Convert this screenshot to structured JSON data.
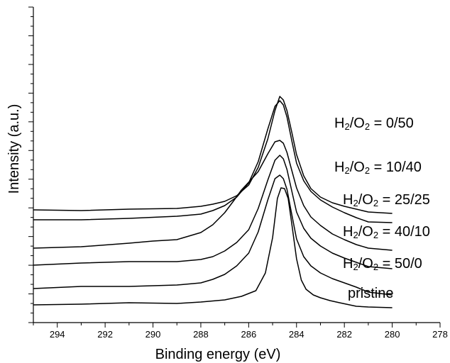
{
  "chart_data": {
    "type": "line",
    "title": "",
    "xlabel": "Binding energy (eV)",
    "ylabel": "Intensity (a.u.)",
    "xlim": [
      295,
      278
    ],
    "x_reversed": true,
    "x_ticks": [
      294,
      292,
      290,
      288,
      286,
      284,
      282,
      280,
      278
    ],
    "y_tick_labels": false,
    "grid": false,
    "legend": "inline labels at right end of each curve",
    "series": [
      {
        "name": "pristine",
        "label": {
          "base": "pristine"
        },
        "x": [
          295,
          293,
          291,
          289,
          288,
          287,
          286.3,
          285.7,
          285.3,
          285.0,
          284.8,
          284.65,
          284.5,
          284.35,
          284.2,
          284.0,
          283.8,
          283.6,
          283.3,
          283.0,
          282.6,
          282.2,
          281.5,
          281.0,
          280.0
        ],
        "y": [
          0.0,
          0.01,
          0.03,
          0.02,
          0.04,
          0.07,
          0.12,
          0.2,
          0.45,
          0.95,
          1.5,
          1.65,
          1.64,
          1.5,
          1.15,
          0.65,
          0.35,
          0.22,
          0.14,
          0.1,
          0.06,
          0.03,
          -0.02,
          -0.03,
          -0.04
        ]
      },
      {
        "name": "H2/O2 = 50/0",
        "label": {
          "base": "H",
          "sub1": "2",
          "mid": "/O",
          "sub2": "2",
          "tail": " = 50/0"
        },
        "x": [
          295,
          293,
          291,
          289,
          288,
          287.5,
          287.0,
          286.5,
          286.0,
          285.6,
          285.2,
          284.9,
          284.7,
          284.55,
          284.4,
          284.2,
          284.0,
          283.7,
          283.4,
          283.0,
          282.5,
          282.0,
          281.5,
          281.0,
          280.0
        ],
        "y": [
          0.0,
          0.03,
          0.03,
          0.05,
          0.08,
          0.13,
          0.2,
          0.32,
          0.5,
          0.8,
          1.25,
          1.55,
          1.6,
          1.55,
          1.4,
          1.05,
          0.7,
          0.45,
          0.32,
          0.22,
          0.14,
          0.08,
          0.02,
          -0.05,
          -0.09
        ]
      },
      {
        "name": "H2/O2 = 40/10",
        "label": {
          "base": "H",
          "sub1": "2",
          "mid": "/O",
          "sub2": "2",
          "tail": " = 40/10"
        },
        "x": [
          295,
          293,
          291,
          289,
          288,
          287.5,
          287.0,
          286.5,
          286.0,
          285.6,
          285.2,
          284.9,
          284.7,
          284.55,
          284.4,
          284.2,
          284.0,
          283.7,
          283.4,
          283.0,
          282.5,
          282.0,
          281.5,
          281.0,
          280.0
        ],
        "y": [
          0.0,
          0.03,
          0.05,
          0.05,
          0.08,
          0.12,
          0.2,
          0.32,
          0.5,
          0.8,
          1.2,
          1.48,
          1.55,
          1.5,
          1.35,
          1.05,
          0.75,
          0.52,
          0.38,
          0.27,
          0.17,
          0.1,
          0.04,
          -0.02,
          -0.05
        ]
      },
      {
        "name": "H2/O2 = 25/25",
        "label": {
          "base": "H",
          "sub1": "2",
          "mid": "/O",
          "sub2": "2",
          "tail": " = 25/25"
        },
        "x": [
          295,
          293,
          291,
          290,
          289,
          288,
          287.5,
          287.0,
          286.6,
          286.3,
          286.0,
          285.6,
          285.2,
          284.9,
          284.7,
          284.55,
          284.4,
          284.2,
          284.0,
          283.7,
          283.4,
          283.0,
          282.5,
          282.0,
          281.5,
          281.0,
          280.0
        ],
        "y": [
          0.0,
          0.02,
          0.07,
          0.1,
          0.12,
          0.22,
          0.33,
          0.5,
          0.68,
          0.82,
          0.93,
          1.08,
          1.33,
          1.5,
          1.52,
          1.48,
          1.35,
          1.1,
          0.85,
          0.6,
          0.44,
          0.32,
          0.2,
          0.12,
          0.05,
          0.0,
          -0.03
        ]
      },
      {
        "name": "H2/O2 = 10/40",
        "label": {
          "base": "H",
          "sub1": "2",
          "mid": "/O",
          "sub2": "2",
          "tail": " = 10/40"
        },
        "x": [
          295,
          293,
          291,
          289,
          288,
          287.5,
          287.0,
          286.5,
          286.0,
          285.6,
          285.2,
          284.9,
          284.7,
          284.55,
          284.4,
          284.2,
          284.0,
          283.7,
          283.4,
          283.0,
          282.5,
          282.0,
          281.5,
          281.0,
          280.0
        ],
        "y": [
          0.0,
          0.0,
          0.02,
          0.05,
          0.08,
          0.13,
          0.2,
          0.32,
          0.52,
          0.82,
          1.28,
          1.6,
          1.68,
          1.62,
          1.45,
          1.12,
          0.8,
          0.55,
          0.4,
          0.28,
          0.18,
          0.1,
          0.03,
          -0.03,
          -0.04
        ]
      },
      {
        "name": "H2/O2 = 0/50",
        "label": {
          "base": "H",
          "sub1": "2",
          "mid": "/O",
          "sub2": "2",
          "tail": " = 0/50"
        },
        "x": [
          295,
          293,
          291,
          289,
          288,
          287.5,
          287.0,
          286.5,
          286.0,
          285.6,
          285.2,
          284.9,
          284.7,
          284.55,
          284.4,
          284.2,
          284.0,
          283.7,
          283.4,
          283.0,
          282.5,
          282.0,
          281.5,
          281.0,
          280.0
        ],
        "y": [
          0.0,
          -0.01,
          0.01,
          0.02,
          0.05,
          0.08,
          0.12,
          0.2,
          0.35,
          0.6,
          1.0,
          1.4,
          1.6,
          1.55,
          1.4,
          1.1,
          0.78,
          0.48,
          0.3,
          0.18,
          0.1,
          0.05,
          0.01,
          -0.03,
          -0.05
        ]
      }
    ]
  }
}
